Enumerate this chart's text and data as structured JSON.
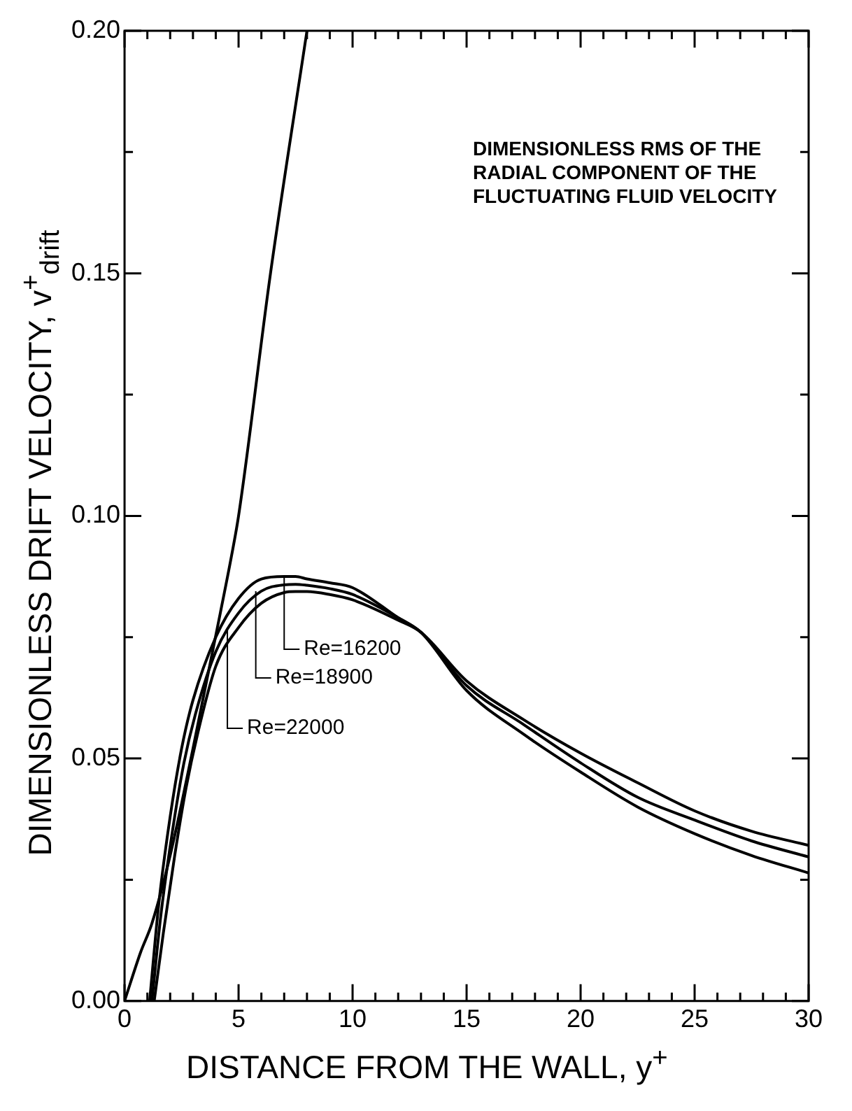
{
  "chart_data": {
    "type": "line",
    "xlabel": "DISTANCE FROM THE WALL, y$^{+}$",
    "ylabel": "DIMENSIONLESS DRIFT VELOCITY, v$^{+}$$_{drift}$",
    "annotations": [
      "DIMENSIONLESS RMS OF THE RADIAL COMPONENT OF THE FLUCTUATING FLUID VELOCITY"
    ],
    "series": [
      {
        "name": "Re=16200",
        "color": "#000000",
        "x": [
          1.1,
          1.5,
          2,
          2.5,
          3,
          4,
          5,
          6,
          7,
          7.5,
          8,
          9,
          10,
          12,
          13,
          15,
          17.5,
          20,
          22.5,
          25,
          27.5,
          30
        ],
        "values": [
          0,
          0.02,
          0.038,
          0.052,
          0.062,
          0.075,
          0.083,
          0.087,
          0.0875,
          0.0875,
          0.087,
          0.0862,
          0.0852,
          0.079,
          0.076,
          0.064,
          0.055,
          0.0472,
          0.04,
          0.0345,
          0.03,
          0.0264
        ]
      },
      {
        "name": "Re=18900",
        "color": "#000000",
        "x": [
          1.2,
          1.6,
          2.1,
          2.6,
          3.1,
          4,
          5,
          6,
          7,
          7.5,
          8,
          9,
          10,
          12,
          13,
          15,
          17.5,
          20,
          22.5,
          25,
          27.5,
          30
        ],
        "values": [
          0,
          0.018,
          0.035,
          0.049,
          0.059,
          0.072,
          0.08,
          0.0845,
          0.0858,
          0.0859,
          0.0857,
          0.085,
          0.0838,
          0.079,
          0.076,
          0.065,
          0.057,
          0.0491,
          0.042,
          0.0373,
          0.033,
          0.0297
        ]
      },
      {
        "name": "Re=22000",
        "color": "#000000",
        "x": [
          1.3,
          1.7,
          2.2,
          2.7,
          3.2,
          4,
          5,
          6,
          7,
          7.5,
          8,
          9,
          10,
          12,
          13,
          15,
          17.5,
          20,
          22.5,
          25,
          27.5,
          30
        ],
        "values": [
          0,
          0.014,
          0.03,
          0.044,
          0.055,
          0.069,
          0.077,
          0.082,
          0.0842,
          0.0844,
          0.0844,
          0.0838,
          0.0827,
          0.0785,
          0.076,
          0.066,
          0.058,
          0.0511,
          0.045,
          0.0392,
          0.035,
          0.0321
        ]
      },
      {
        "color": "#000000",
        "x": [
          0,
          0.7,
          1.2,
          2,
          3,
          4.2,
          4.7,
          5,
          6.4,
          8
        ],
        "values": [
          0,
          0.01,
          0.016,
          0.03,
          0.052,
          0.08,
          0.092,
          0.1,
          0.15,
          0.2
        ]
      }
    ],
    "xlim": [
      0,
      30
    ],
    "xticks": [
      0,
      {
        "value": 1,
        "label": null
      },
      {
        "value": 2,
        "label": null
      },
      {
        "value": 3,
        "label": null
      },
      {
        "value": 4,
        "label": null
      },
      5,
      {
        "value": 6,
        "label": null
      },
      {
        "value": 7,
        "label": null
      },
      {
        "value": 8,
        "label": null
      },
      {
        "value": 9,
        "label": null
      },
      10,
      {
        "value": 11,
        "label": null
      },
      {
        "value": 12,
        "label": null
      },
      {
        "value": 13,
        "label": null
      },
      {
        "value": 14,
        "label": null
      },
      15,
      {
        "value": 16,
        "label": null
      },
      {
        "value": 17,
        "label": null
      },
      {
        "value": 18,
        "label": null
      },
      {
        "value": 19,
        "label": null
      },
      20,
      {
        "value": 21,
        "label": null
      },
      {
        "value": 22,
        "label": null
      },
      {
        "value": 23,
        "label": null
      },
      {
        "value": 24,
        "label": null
      },
      25,
      {
        "value": 26,
        "label": null
      },
      {
        "value": 27,
        "label": null
      },
      {
        "value": 28,
        "label": null
      },
      {
        "value": 29,
        "label": null
      },
      30
    ],
    "ylim": [
      0,
      0.2
    ],
    "yticks": [
      {
        "value": 0,
        "label": "0.00"
      },
      {
        "value": 0.025,
        "label": null
      },
      {
        "value": 0.05,
        "label": "0.05"
      },
      {
        "value": 0.075,
        "label": null
      },
      {
        "value": 0.1,
        "label": "0.10"
      },
      {
        "value": 0.125,
        "label": null
      },
      {
        "value": 0.15,
        "label": "0.15"
      },
      {
        "value": 0.175,
        "label": null
      },
      {
        "value": 0.2,
        "label": "0.20"
      }
    ],
    "grid": false,
    "legend": false,
    "marker": "none",
    "line_style": "solid"
  }
}
